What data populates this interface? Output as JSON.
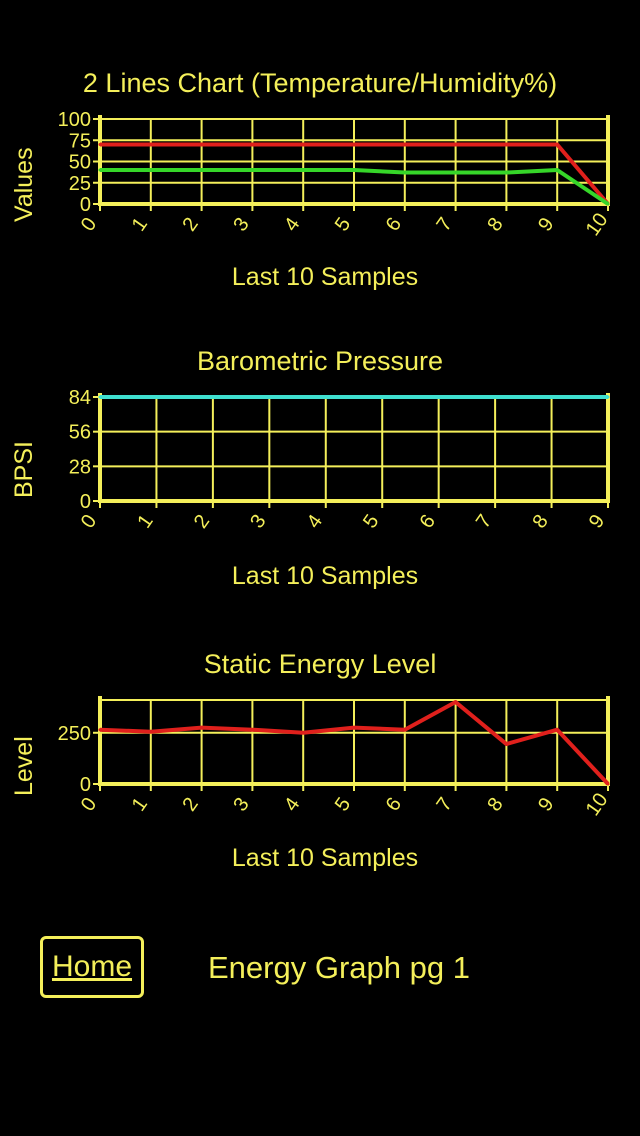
{
  "chart_data": [
    {
      "type": "line",
      "title": "2 Lines Chart (Temperature/Humidity%)",
      "xlabel": "Last 10 Samples",
      "ylabel": "Values",
      "categories": [
        "0",
        "1",
        "2",
        "3",
        "4",
        "5",
        "6",
        "7",
        "8",
        "9",
        "10"
      ],
      "ylim": [
        0,
        100
      ],
      "yticks": [
        "0",
        "25",
        "50",
        "75",
        "100"
      ],
      "grid": true,
      "series": [
        {
          "name": "Temperature",
          "color": "#e0201c",
          "values": [
            70,
            70,
            70,
            70,
            70,
            70,
            70,
            70,
            70,
            70,
            0
          ]
        },
        {
          "name": "Humidity%",
          "color": "#36d629",
          "values": [
            40,
            40,
            40,
            40,
            40,
            40,
            37,
            37,
            37,
            40,
            0
          ]
        }
      ]
    },
    {
      "type": "line",
      "title": "Barometric Pressure",
      "xlabel": "Last 10 Samples",
      "ylabel": "BPSI",
      "categories": [
        "0",
        "1",
        "2",
        "3",
        "4",
        "5",
        "6",
        "7",
        "8",
        "9"
      ],
      "ylim": [
        0,
        84
      ],
      "yticks": [
        "0",
        "28",
        "56",
        "84"
      ],
      "grid": true,
      "series": [
        {
          "name": "Pressure",
          "color": "#3fe0d0",
          "values": [
            84,
            84,
            84,
            84,
            84,
            84,
            84,
            84,
            84,
            84
          ]
        }
      ]
    },
    {
      "type": "line",
      "title": "Static Energy Level",
      "xlabel": "Last 10 Samples",
      "ylabel": "Level",
      "categories": [
        "0",
        "1",
        "2",
        "3",
        "4",
        "5",
        "6",
        "7",
        "8",
        "9",
        "10"
      ],
      "ylim": [
        0,
        410
      ],
      "yticks": [
        "0",
        "250"
      ],
      "grid": true,
      "series": [
        {
          "name": "Energy",
          "color": "#e0201c",
          "values": [
            265,
            255,
            275,
            265,
            250,
            275,
            265,
            400,
            195,
            265,
            0
          ]
        }
      ]
    }
  ],
  "footer": {
    "home_label": "Home",
    "page_label": "Energy Graph pg 1"
  }
}
